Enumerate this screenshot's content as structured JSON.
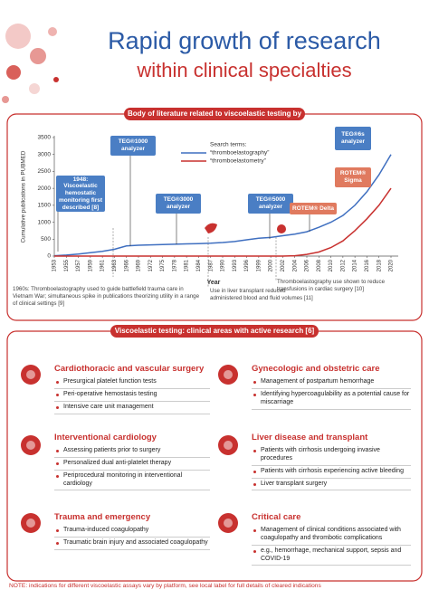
{
  "header": {
    "title": "Rapid growth of research",
    "subtitle": "within clinical specialties"
  },
  "chart_data": {
    "type": "line",
    "title": "Body of literature related to viscoelastic testing by year",
    "x_label": "Year",
    "y_label": "Cumulative publications in PUBMED",
    "legend_title": "Search terms:",
    "categories": [
      "1953",
      "1955",
      "1957",
      "1959",
      "1961",
      "1963",
      "1966",
      "1969",
      "1972",
      "1975",
      "1978",
      "1981",
      "1984",
      "1987",
      "1990",
      "1993",
      "1996",
      "1999",
      "2000",
      "2002",
      "2004",
      "2006",
      "2008",
      "2010",
      "2012",
      "2014",
      "2016",
      "2018",
      "2020"
    ],
    "series": [
      {
        "name": "“thromboelastography”",
        "color": "#3f6fc0",
        "values": [
          10,
          30,
          60,
          100,
          140,
          200,
          300,
          320,
          330,
          340,
          350,
          360,
          370,
          380,
          400,
          430,
          480,
          530,
          550,
          600,
          650,
          720,
          850,
          1000,
          1200,
          1500,
          1900,
          2400,
          3000
        ]
      },
      {
        "name": "“thromboelastometry”",
        "color": "#c8312f",
        "values": [
          0,
          0,
          0,
          0,
          0,
          0,
          0,
          0,
          0,
          0,
          0,
          0,
          0,
          0,
          0,
          0,
          0,
          0,
          0,
          0,
          10,
          50,
          120,
          250,
          450,
          750,
          1100,
          1500,
          2000
        ]
      }
    ],
    "ylim": [
      0,
      3500
    ],
    "yticks": [
      0,
      500,
      1000,
      1500,
      2000,
      2500,
      3000,
      3500
    ],
    "annotations": [
      "1948: Viscoelastic hemostatic monitoring first described [8]",
      "TEG®1000 analyzer",
      "TEG®3000 analyzer",
      "TEG®5000 analyzer",
      "ROTEM® Delta",
      "TEG®6s analyzer",
      "ROTEM® Sigma"
    ],
    "notes": [
      "1960s: Thromboelastography used to guide battlefield trauma care in Vietnam War; simultaneous spike in publications theorizing utility in a range of clinical settings [9]",
      "Use in liver transplant reduced administered blood and fluid volumes [11]",
      "Thromboelastography use shown to reduce transfusions in cardiac surgery [10]"
    ]
  },
  "clinical_areas": {
    "title": "Viscoelastic testing: clinical areas with active research [6]",
    "sections": [
      {
        "title": "Cardiothoracic and vascular surgery",
        "bullets": [
          "Presurgical platelet function tests",
          "Peri-operative hemostasis testing",
          "Intensive care unit management"
        ]
      },
      {
        "title": "Gynecologic and obstetric care",
        "bullets": [
          "Management of postpartum hemorrhage",
          "Identifying hypercoagulability as a potential cause for miscarriage"
        ]
      },
      {
        "title": "Interventional cardiology",
        "bullets": [
          "Assessing patients prior to surgery",
          "Personalized dual anti-platelet therapy",
          "Periprocedural monitoring in interventional cardiology"
        ]
      },
      {
        "title": "Liver disease and transplant",
        "bullets": [
          "Patients with cirrhosis undergoing invasive procedures",
          "Patients with cirrhosis experiencing active bleeding",
          "Liver transplant surgery"
        ]
      },
      {
        "title": "Trauma and emergency",
        "bullets": [
          "Trauma-induced coagulopathy",
          "Traumatic brain injury and associated coagulopathy"
        ]
      },
      {
        "title": "Critical care",
        "bullets": [
          "Management of clinical conditions associated with coagulopathy and thrombotic complications",
          "e.g., hemorrhage, mechanical support, sepsis and COVID-19"
        ]
      }
    ]
  },
  "note": "NOTE: indications for different viscoelastic assays vary by platform, see local label for full details of cleared indications"
}
